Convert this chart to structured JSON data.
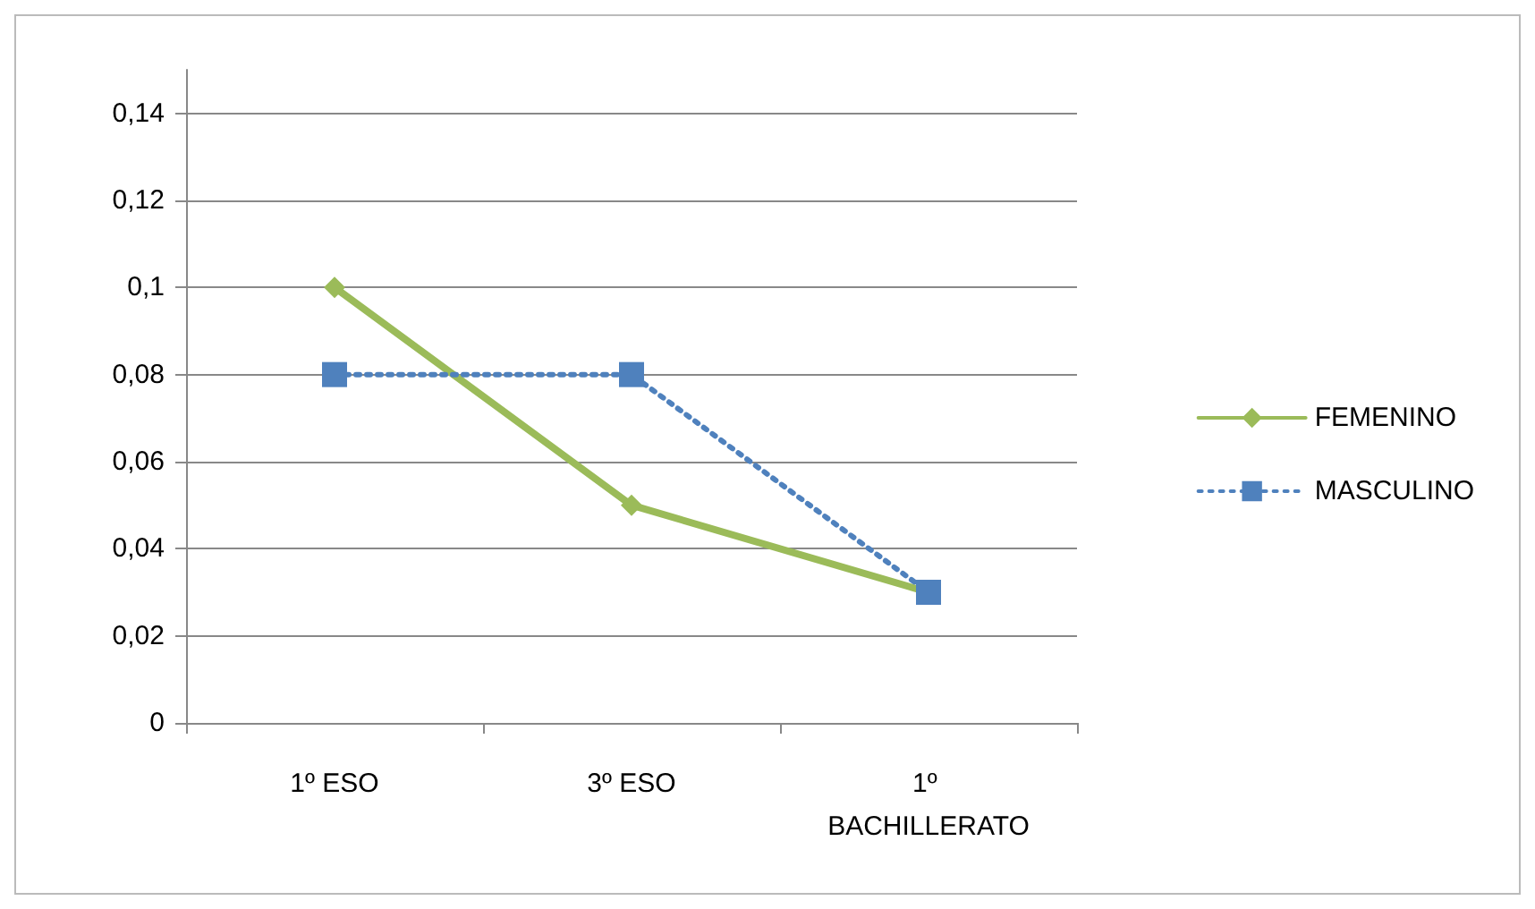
{
  "chart_data": {
    "type": "line",
    "categories": [
      "1º ESO",
      "3º ESO",
      "1º BACHILLERATO"
    ],
    "series": [
      {
        "name": "FEMENINO",
        "color": "#9bbb59",
        "values": [
          0.1,
          0.05,
          0.03
        ],
        "marker": "diamond",
        "line_style": "solid"
      },
      {
        "name": "MASCULINO",
        "color": "#4f81bd",
        "values": [
          0.08,
          0.08,
          0.03
        ],
        "marker": "square",
        "line_style": "dotted"
      }
    ],
    "ylim": [
      0,
      0.15
    ],
    "yticks": [
      0,
      {
        "value": 0.02,
        "label": "0,02"
      },
      {
        "value": 0.04,
        "label": "0,04"
      },
      {
        "value": 0.06,
        "label": "0,06"
      },
      {
        "value": 0.08,
        "label": "0,08"
      },
      {
        "value": 0.1,
        "label": "0,1"
      },
      {
        "value": 0.12,
        "label": "0,12"
      },
      {
        "value": 0.14,
        "label": "0,14"
      }
    ],
    "grid": "y",
    "legend": "right"
  }
}
